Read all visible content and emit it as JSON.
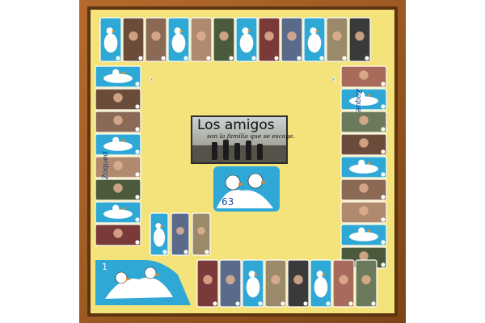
{
  "board": {
    "caption_title": "Los amigos",
    "caption_subtitle": "son la familia que se escoge.",
    "final_square_number": "63",
    "start_square_number": "1",
    "left_side_text": "Zoqued",
    "right_side_text": "Zoque",
    "icons": [
      "goose-icon",
      "photo-tile"
    ]
  },
  "colors": {
    "frame": "#9c5a22",
    "frame_dark": "#6e3a12",
    "board_yellow": "#f4e37a",
    "cell_blue": "#2fa8d6",
    "cell_white": "#ffffff",
    "goose_beak": "#f08a1c",
    "goose_foot": "#d63a2a"
  }
}
